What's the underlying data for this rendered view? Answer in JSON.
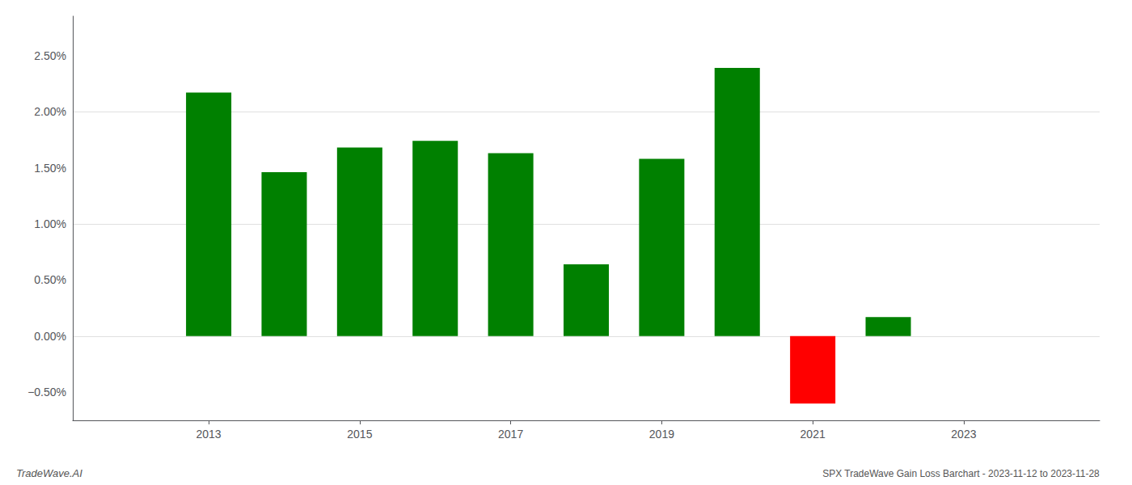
{
  "chart_data": {
    "type": "bar",
    "x": [
      2013,
      2014,
      2015,
      2016,
      2017,
      2018,
      2019,
      2020,
      2021,
      2022
    ],
    "values": [
      0.0217,
      0.0146,
      0.0168,
      0.0174,
      0.0163,
      0.0064,
      0.0158,
      0.0239,
      -0.006,
      0.0017
    ],
    "colors": [
      "#008000",
      "#008000",
      "#008000",
      "#008000",
      "#008000",
      "#008000",
      "#008000",
      "#008000",
      "#ff0000",
      "#008000"
    ],
    "xlim": [
      2011.2,
      2024.8
    ],
    "xticks": [
      2013,
      2015,
      2017,
      2019,
      2021,
      2023
    ],
    "ylim": [
      -0.0075,
      0.0285
    ],
    "yticks": [
      {
        "value": -0.005,
        "label": "−0.50%"
      },
      {
        "value": 0.0,
        "label": "0.00%"
      },
      {
        "value": 0.005,
        "label": "0.50%"
      },
      {
        "value": 0.01,
        "label": "1.00%"
      },
      {
        "value": 0.015,
        "label": "1.50%"
      },
      {
        "value": 0.02,
        "label": "2.00%"
      },
      {
        "value": 0.025,
        "label": "2.50%"
      }
    ],
    "grid": true,
    "annotations": [
      "TradeWave.AI",
      "SPX TradeWave Gain Loss Barchart - 2023-11-12 to 2023-11-28"
    ]
  }
}
